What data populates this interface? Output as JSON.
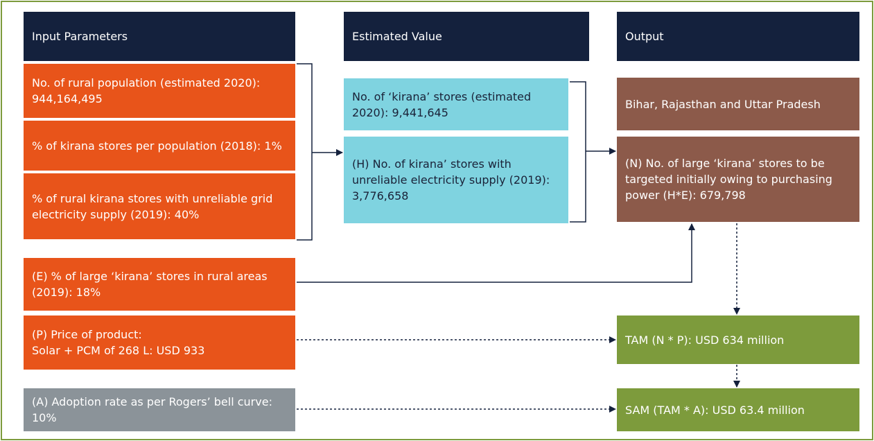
{
  "headers": [
    "Input Parameters",
    "Estimated Value",
    "Output"
  ],
  "inputs": [
    "No. of rural population (estimated 2020): 944,164,495",
    "% of kirana stores per population (2018): 1%",
    "% of rural kirana stores with unreliable grid electricity supply (2019): 40%",
    "(E) % of large ‘kirana’ stores in rural areas (2019): 18%",
    "(P) Price of product:\nSolar + PCM of 268 L: USD 933",
    "(A) Adoption rate as per Rogers’ bell curve: 10%"
  ],
  "estimates": [
    "No. of ‘kirana’ stores (estimated 2020): 9,441,645",
    "(H) No. of kirana’ stores with unreliable electricity supply (2019): 3,776,658"
  ],
  "outputs": [
    "Bihar, Rajasthan and Uttar Pradesh",
    "(N) No. of large ‘kirana’ stores to be targeted initially owing to purchasing power (H*E): 679,798",
    "TAM (N * P): USD 634 million",
    "SAM (TAM * A): USD 63.4 million"
  ]
}
